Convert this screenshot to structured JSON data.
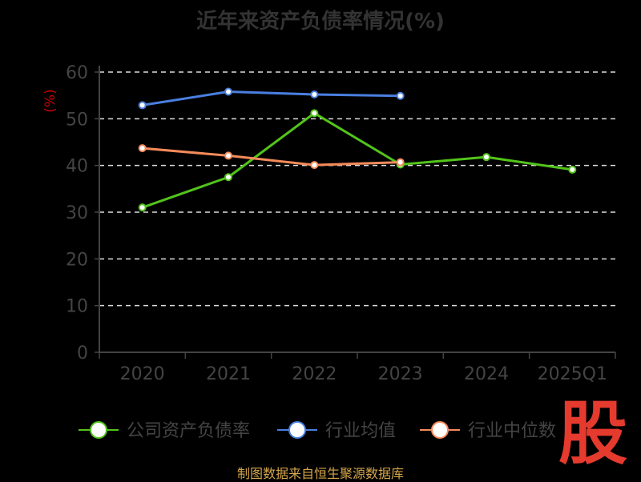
{
  "chart_data": {
    "type": "line",
    "title": "近年来资产负债率情况(%)",
    "ylabel": "(%)",
    "categories": [
      "2020",
      "2021",
      "2022",
      "2023",
      "2024",
      "2025Q1"
    ],
    "ylim": [
      0,
      60
    ],
    "yticks": [
      0,
      10,
      20,
      30,
      40,
      50,
      60
    ],
    "grid": true,
    "legend_position": "bottom",
    "series": [
      {
        "name": "公司资产负债率",
        "color": "#52c41a",
        "values": [
          31.0,
          37.5,
          51.2,
          40.2,
          41.8,
          39.1
        ]
      },
      {
        "name": "行业均值",
        "color": "#4a7fe0",
        "values": [
          52.9,
          55.8,
          55.2,
          54.9,
          null,
          null
        ]
      },
      {
        "name": "行业中位数",
        "color": "#f58a5a",
        "values": [
          43.7,
          42.1,
          40.1,
          40.7,
          null,
          null
        ]
      }
    ]
  },
  "source": "制图数据来自恒生聚源数据库",
  "watermark": "股",
  "colors": {
    "background": "#000000",
    "axis": "#444444",
    "grid": "#dddddd",
    "tick_text": "#444444",
    "ylabel": "#cc0000"
  }
}
